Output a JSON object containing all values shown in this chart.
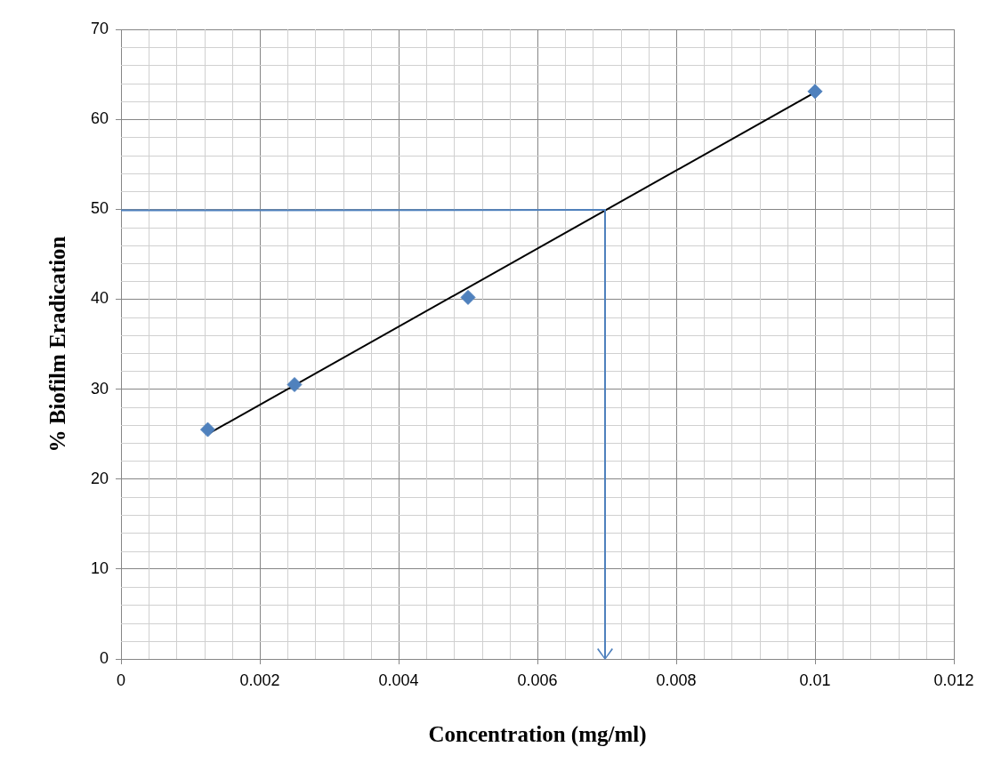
{
  "chart_data": {
    "type": "scatter",
    "xlabel": "Concentration (mg/ml)",
    "ylabel": "% Biofilm Eradication",
    "xlim": [
      0,
      0.012
    ],
    "xticks": [
      0,
      0.002,
      0.004,
      0.006,
      0.008,
      0.01,
      0.012
    ],
    "ylim": [
      0,
      70
    ],
    "yticks": [
      0,
      10,
      20,
      30,
      40,
      50,
      60,
      70
    ],
    "grid": true,
    "legend": false,
    "line_style": "solid",
    "series": [
      {
        "type": "scatter",
        "marker": "diamond",
        "color": "#4f81bd",
        "x": [
          0.00125,
          0.0025,
          0.005,
          0.01
        ],
        "values": [
          25.5,
          30.5,
          40.2,
          63.1
        ]
      },
      {
        "type": "line",
        "marker": "none",
        "color": "#000000",
        "x": [
          0.00125,
          0.01
        ],
        "values": [
          25,
          63
        ]
      }
    ]
  }
}
